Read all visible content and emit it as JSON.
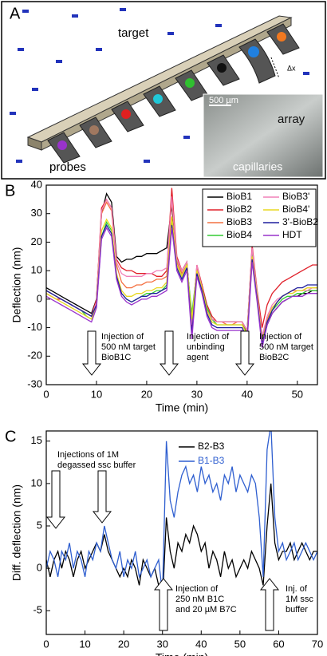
{
  "panel_a": {
    "label": "A",
    "target": "target",
    "probes": "probes",
    "array": "array",
    "capillaries": "capillaries",
    "scale": "500 µm",
    "dx": "Δx"
  },
  "chart_data": [
    {
      "type": "line",
      "panel": "B",
      "xlabel": "Time (min)",
      "ylabel": "Deflection (nm)",
      "xlim": [
        0,
        54
      ],
      "xticks": [
        0,
        10,
        20,
        30,
        40,
        50
      ],
      "ylim": [
        -30,
        40
      ],
      "yticks": [
        -30,
        -20,
        -10,
        0,
        10,
        20,
        30,
        40
      ],
      "legend": "upper right",
      "legend_frame": true,
      "x": [
        0,
        1,
        2,
        3,
        4,
        5,
        6,
        7,
        8,
        9,
        10,
        11,
        12,
        13,
        14,
        15,
        16,
        17,
        18,
        19,
        20,
        21,
        22,
        23,
        24,
        25,
        26,
        27,
        28,
        29,
        30,
        31,
        32,
        33,
        34,
        35,
        36,
        37,
        38,
        39,
        40,
        41,
        42,
        43,
        44,
        45,
        46,
        47,
        48,
        49,
        50,
        51,
        52,
        53,
        54
      ],
      "series": [
        {
          "name": "BioB1",
          "color": "#000000",
          "values": [
            4,
            3,
            2,
            1,
            0,
            -1,
            -2,
            -3,
            -4,
            -5,
            0,
            30,
            37,
            34,
            15,
            13,
            14,
            14,
            15,
            15,
            16,
            16,
            16,
            17,
            18,
            33,
            14,
            10,
            13,
            -8,
            11,
            5,
            -3,
            -7,
            -8,
            -8,
            -8,
            -8,
            -8,
            -8,
            -11,
            17,
            1,
            -16,
            -9,
            -5,
            -3,
            -1,
            0,
            1,
            1,
            2,
            2,
            3,
            3
          ]
        },
        {
          "name": "BioB2",
          "color": "#e0202a",
          "values": [
            2,
            1,
            0,
            0,
            -1,
            -2,
            -3,
            -4,
            -5,
            -6,
            0,
            32,
            35,
            32,
            14,
            11,
            10,
            10,
            9,
            9,
            9,
            9,
            8,
            8,
            10,
            39,
            15,
            10,
            13,
            -10,
            12,
            5,
            -2,
            -6,
            -8,
            -8,
            -8,
            -8,
            -8,
            -8,
            -12,
            19,
            3,
            -10,
            -2,
            2,
            4,
            6,
            7,
            8,
            9,
            10,
            11,
            12,
            12
          ]
        },
        {
          "name": "BioB3",
          "color": "#f47040",
          "values": [
            3,
            2,
            1,
            0,
            -1,
            -2,
            -3,
            -4,
            -5,
            -6,
            -1,
            30,
            34,
            31,
            12,
            6,
            4,
            4,
            5,
            5,
            6,
            6,
            7,
            7,
            8,
            35,
            13,
            9,
            12,
            -8,
            11,
            4,
            -4,
            -7,
            -8,
            -8,
            -9,
            -9,
            -8,
            -8,
            -13,
            17,
            2,
            -14,
            -7,
            -3,
            -1,
            1,
            2,
            3,
            3,
            3,
            4,
            4,
            4
          ]
        },
        {
          "name": "BioB4",
          "color": "#33cc33",
          "values": [
            3,
            2,
            1,
            0,
            -1,
            -2,
            -3,
            -4,
            -6,
            -7,
            -2,
            22,
            27,
            24,
            8,
            2,
            0,
            -1,
            0,
            1,
            2,
            2,
            3,
            3,
            5,
            28,
            12,
            8,
            12,
            -5,
            10,
            4,
            -3,
            -7,
            -9,
            -9,
            -9,
            -9,
            -9,
            -9,
            -12,
            16,
            2,
            -15,
            -8,
            -4,
            -2,
            0,
            1,
            1,
            2,
            2,
            3,
            3,
            3
          ]
        },
        {
          "name": "BioB3'",
          "color": "#f080b8",
          "values": [
            3,
            2,
            1,
            0,
            -1,
            -2,
            -3,
            -4,
            -5,
            -6,
            -1,
            31,
            35,
            32,
            13,
            9,
            8,
            8,
            8,
            8,
            9,
            9,
            10,
            10,
            11,
            36,
            14,
            10,
            13,
            -9,
            12,
            4,
            -4,
            -7,
            -8,
            -8,
            -8,
            -8,
            -8,
            -8,
            -11,
            18,
            2,
            -13,
            -6,
            -2,
            0,
            1,
            2,
            2,
            3,
            3,
            3,
            4,
            4
          ]
        },
        {
          "name": "BioB4'",
          "color": "#e8d820",
          "values": [
            2,
            1,
            0,
            -1,
            -2,
            -3,
            -4,
            -5,
            -6,
            -7,
            -2,
            24,
            28,
            25,
            9,
            3,
            1,
            1,
            2,
            2,
            3,
            3,
            4,
            4,
            6,
            29,
            12,
            8,
            12,
            -7,
            10,
            4,
            -4,
            -8,
            -9,
            -9,
            -9,
            -9,
            -9,
            -9,
            -13,
            15,
            1,
            -15,
            -8,
            -3,
            -1,
            1,
            2,
            2,
            3,
            3,
            4,
            4,
            4
          ]
        },
        {
          "name": "3'-BioB2",
          "color": "#1f1f9e",
          "values": [
            3,
            2,
            1,
            0,
            -1,
            -2,
            -3,
            -4,
            -5,
            -6,
            -2,
            22,
            26,
            23,
            8,
            2,
            0,
            -1,
            0,
            1,
            1,
            2,
            2,
            3,
            4,
            26,
            11,
            7,
            11,
            -12,
            9,
            3,
            -5,
            -9,
            -10,
            -10,
            -10,
            -10,
            -10,
            -10,
            -14,
            14,
            0,
            -16,
            -8,
            -4,
            -1,
            1,
            2,
            3,
            4,
            4,
            5,
            5,
            5
          ]
        },
        {
          "name": "HDT",
          "color": "#9933cc",
          "values": [
            1,
            0,
            -1,
            -2,
            -3,
            -4,
            -5,
            -6,
            -7,
            -8,
            -3,
            21,
            25,
            22,
            7,
            1,
            -1,
            -2,
            -1,
            0,
            0,
            1,
            1,
            2,
            3,
            25,
            10,
            6,
            10,
            -14,
            8,
            2,
            -6,
            -10,
            -11,
            -11,
            -11,
            -11,
            -11,
            -11,
            -15,
            13,
            -1,
            -17,
            -9,
            -5,
            -3,
            -1,
            0,
            1,
            1,
            1,
            2,
            2,
            2
          ]
        }
      ],
      "annotations": [
        [
          "Injection of",
          "500 nM target",
          "BioB1C"
        ],
        [
          "Injection of",
          "unbinding",
          "agent"
        ],
        [
          "Injection of",
          "500 nM target",
          "BioB2C"
        ]
      ]
    },
    {
      "type": "line",
      "panel": "C",
      "xlabel": "Time (min)",
      "ylabel": "Diff. deflection (nm)",
      "xlim": [
        0,
        70
      ],
      "xticks": [
        0,
        10,
        20,
        30,
        40,
        50,
        60,
        70
      ],
      "ylim": [
        -7.8,
        16.2
      ],
      "yticks": [
        -5,
        0,
        5,
        10,
        15
      ],
      "legend": "upper center",
      "legend_frame": false,
      "x": [
        0,
        1,
        2,
        3,
        4,
        5,
        6,
        7,
        8,
        9,
        10,
        11,
        12,
        13,
        14,
        15,
        16,
        17,
        18,
        19,
        20,
        21,
        22,
        23,
        24,
        25,
        26,
        27,
        28,
        29,
        30,
        31,
        32,
        33,
        34,
        35,
        36,
        37,
        38,
        39,
        40,
        41,
        42,
        43,
        44,
        45,
        46,
        47,
        48,
        49,
        50,
        51,
        52,
        53,
        54,
        55,
        56,
        57,
        58,
        59,
        60,
        61,
        62,
        63,
        64,
        65,
        66,
        67,
        68,
        69,
        70
      ],
      "series": [
        {
          "name": "B2-B3",
          "color": "#000000",
          "values": [
            1,
            -1,
            1,
            2,
            0,
            2,
            1,
            -1,
            1,
            2,
            0,
            1,
            2,
            3,
            2,
            4,
            2,
            1,
            0,
            -1,
            0,
            -1,
            1,
            0,
            -2,
            1,
            0,
            -1,
            0,
            -2,
            -4,
            6,
            2,
            0,
            3,
            2,
            4,
            3,
            5,
            4,
            2,
            3,
            0,
            2,
            1,
            -1,
            2,
            0,
            1,
            -1,
            0,
            1,
            0,
            2,
            1,
            0,
            -2,
            5,
            10,
            3,
            1,
            2,
            2,
            3,
            1,
            2,
            3,
            2,
            1,
            2,
            2
          ]
        },
        {
          "name": "B1-B3",
          "color": "#2f5fd0",
          "values": [
            0,
            2,
            1,
            -1,
            2,
            1,
            3,
            0,
            2,
            1,
            -1,
            2,
            1,
            3,
            2,
            5,
            3,
            1,
            0,
            2,
            -1,
            1,
            0,
            2,
            -1,
            0,
            1,
            -1,
            0,
            1,
            -3,
            15,
            8,
            6,
            9,
            11,
            12,
            10,
            11,
            9,
            12,
            10,
            11,
            9,
            10,
            8,
            11,
            10,
            12,
            9,
            11,
            10,
            9,
            11,
            10,
            6,
            -1,
            14,
            17,
            6,
            2,
            3,
            1,
            2,
            3,
            1,
            2,
            3,
            2,
            1,
            2
          ]
        }
      ],
      "annotations": [
        [
          "Injections of 1M",
          "degassed ssc buffer"
        ],
        [
          "Injection of",
          "250 nM B1C",
          "and 20 µM B7C"
        ],
        [
          "Inj. of",
          "1M ssc",
          "buffer"
        ]
      ]
    }
  ]
}
